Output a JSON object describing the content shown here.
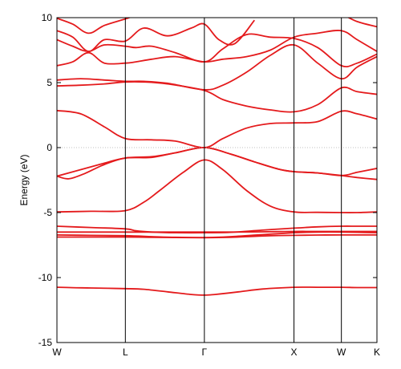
{
  "chart_data": {
    "type": "line",
    "title": "",
    "xlabel": "",
    "ylabel": "Energy (eV)",
    "ylim": [
      -15,
      10
    ],
    "yticks": [
      -15,
      -10,
      -5,
      0,
      5,
      10
    ],
    "xticks": [
      {
        "label": "W",
        "pos": 0
      },
      {
        "label": "L",
        "pos": 0.866
      },
      {
        "label": "Γ",
        "pos": 1.866
      },
      {
        "label": "X",
        "pos": 3.0
      },
      {
        "label": "W",
        "pos": 3.6
      },
      {
        "label": "K",
        "pos": 4.05
      }
    ],
    "xlim": [
      0,
      4.05
    ],
    "fermi_level": 0,
    "grid": false,
    "colors": {
      "bands": "#e41a1c",
      "axis": "#000000",
      "fermi": "#aaaaaa"
    },
    "series": [
      {
        "x": [
          0,
          0.2,
          0.43,
          0.65,
          0.866,
          1.1,
          1.4,
          1.7,
          1.866,
          2.0,
          2.3,
          2.6,
          3.0,
          3.3,
          3.6,
          3.8,
          4.05
        ],
        "values": [
          -10.75,
          -10.78,
          -10.8,
          -10.83,
          -10.85,
          -10.9,
          -11.1,
          -11.3,
          -11.35,
          -11.3,
          -11.1,
          -10.88,
          -10.75,
          -10.75,
          -10.75,
          -10.77,
          -10.77
        ]
      },
      {
        "x": [
          0,
          0.43,
          0.866,
          1.2,
          1.5,
          1.866,
          2.2,
          2.6,
          3.0,
          3.3,
          3.6,
          3.8,
          4.05
        ],
        "values": [
          -6.88,
          -6.88,
          -6.88,
          -6.9,
          -6.92,
          -6.93,
          -6.9,
          -6.8,
          -6.75,
          -6.73,
          -6.72,
          -6.72,
          -6.72
        ]
      },
      {
        "x": [
          0,
          0.43,
          0.866,
          1.2,
          1.5,
          1.866,
          2.2,
          2.6,
          3.0,
          3.3,
          3.6,
          3.8,
          4.05
        ],
        "values": [
          -6.72,
          -6.75,
          -6.78,
          -6.85,
          -6.9,
          -6.92,
          -6.85,
          -6.7,
          -6.55,
          -6.5,
          -6.5,
          -6.52,
          -6.55
        ]
      },
      {
        "x": [
          0,
          0.43,
          0.866,
          1.2,
          1.5,
          1.866,
          2.2,
          2.6,
          3.0,
          3.3,
          3.6,
          3.8,
          4.05
        ],
        "values": [
          -6.5,
          -6.5,
          -6.5,
          -6.5,
          -6.5,
          -6.5,
          -6.5,
          -6.48,
          -6.45,
          -6.45,
          -6.45,
          -6.45,
          -6.45
        ]
      },
      {
        "x": [
          0,
          0.43,
          0.866,
          1.0,
          1.2,
          1.5,
          1.866,
          2.2,
          2.6,
          3.0,
          3.3,
          3.6,
          3.8,
          4.05
        ],
        "values": [
          -6.05,
          -6.15,
          -6.25,
          -6.4,
          -6.5,
          -6.55,
          -6.55,
          -6.52,
          -6.35,
          -6.2,
          -6.1,
          -6.05,
          -6.05,
          -6.05
        ]
      },
      {
        "x": [
          0,
          0.43,
          0.866,
          1.1,
          1.3,
          1.6,
          1.866,
          2.1,
          2.4,
          2.7,
          3.0,
          3.3,
          3.6,
          3.8,
          4.05
        ],
        "values": [
          -4.95,
          -4.9,
          -4.85,
          -4.2,
          -3.3,
          -1.9,
          -0.95,
          -1.7,
          -3.3,
          -4.5,
          -4.95,
          -4.98,
          -5.0,
          -5.0,
          -4.95
        ]
      },
      {
        "x": [
          0,
          0.15,
          0.35,
          0.6,
          0.866,
          1.2,
          1.5,
          1.866,
          2.2,
          2.5,
          2.8,
          3.0,
          3.3,
          3.6,
          3.8,
          4.05
        ],
        "values": [
          -2.2,
          -2.4,
          -2.0,
          -1.3,
          -0.8,
          -0.7,
          -0.4,
          0,
          -0.5,
          -1.1,
          -1.65,
          -1.85,
          -1.95,
          -2.15,
          -2.3,
          -2.45
        ]
      },
      {
        "x": [
          0,
          0.3,
          0.6,
          0.866,
          1.2,
          1.5,
          1.866,
          2.2,
          2.5,
          2.8,
          3.0,
          3.3,
          3.6,
          3.8,
          4.05
        ],
        "values": [
          -2.2,
          -1.7,
          -1.2,
          -0.8,
          -0.75,
          -0.4,
          0,
          -0.5,
          -1.1,
          -1.65,
          -1.85,
          -1.95,
          -2.15,
          -1.9,
          -1.6
        ]
      },
      {
        "x": [
          0,
          0.3,
          0.6,
          0.866,
          1.2,
          1.5,
          1.866,
          2.1,
          2.4,
          2.7,
          3.0,
          3.3,
          3.6,
          3.8,
          4.05
        ],
        "values": [
          2.85,
          2.6,
          1.6,
          0.7,
          0.6,
          0.5,
          0,
          0.7,
          1.5,
          1.85,
          1.9,
          2.0,
          2.8,
          2.6,
          2.2
        ]
      },
      {
        "x": [
          0,
          0.3,
          0.6,
          0.866,
          1.1,
          1.4,
          1.866,
          2.1,
          2.4,
          2.7,
          3.0,
          3.3,
          3.6,
          3.8,
          4.05
        ],
        "values": [
          4.75,
          4.8,
          4.9,
          5.05,
          5.05,
          4.9,
          4.4,
          3.7,
          3.2,
          2.9,
          2.75,
          3.3,
          4.6,
          4.3,
          4.1
        ]
      },
      {
        "x": [
          0,
          0.3,
          0.6,
          0.866,
          1.1,
          1.4,
          1.866,
          2.1,
          2.4,
          2.7,
          3.0,
          3.3,
          3.6,
          3.8,
          4.05
        ],
        "values": [
          5.2,
          5.3,
          5.2,
          5.1,
          5.1,
          4.95,
          4.45,
          4.8,
          5.8,
          7.1,
          7.9,
          6.5,
          5.3,
          6.2,
          7.0
        ]
      },
      {
        "x": [
          0,
          0.2,
          0.4,
          0.6,
          0.866,
          1.0,
          1.2,
          1.5,
          1.866,
          2.1,
          2.4,
          2.7,
          3.0,
          3.3,
          3.6,
          3.8,
          4.05
        ],
        "values": [
          6.3,
          6.6,
          7.3,
          6.5,
          6.5,
          6.6,
          6.8,
          7.0,
          6.6,
          6.8,
          7.0,
          7.5,
          8.5,
          8.8,
          9.0,
          8.3,
          7.4
        ]
      },
      {
        "x": [
          0,
          0.2,
          0.4,
          0.6,
          0.866,
          1.0,
          1.2,
          1.5,
          1.866,
          2.1,
          2.4,
          2.7,
          3.0,
          3.3,
          3.6,
          3.8,
          4.05
        ],
        "values": [
          8.3,
          7.8,
          7.4,
          7.9,
          7.8,
          7.7,
          7.8,
          7.3,
          6.6,
          7.6,
          8.7,
          8.5,
          8.4,
          7.7,
          6.3,
          6.5,
          7.2
        ]
      },
      {
        "x": [
          0,
          0.2,
          0.4,
          0.6,
          0.866,
          1.1,
          1.4,
          1.7,
          1.866,
          2.05,
          2.25,
          2.5
        ],
        "values": [
          9.0,
          8.5,
          7.4,
          8.3,
          8.2,
          9.2,
          8.6,
          9.2,
          9.5,
          8.3,
          8.0,
          9.8
        ]
      },
      {
        "x": [
          0,
          0.2,
          0.4,
          0.6,
          0.866,
          1.2,
          1.5,
          1.866,
          2.05,
          2.25,
          2.5
        ],
        "values": [
          9.95,
          9.5,
          8.8,
          9.4,
          9.9,
          10.5,
          10.2,
          10.6,
          10.3,
          10.5,
          10.8
        ]
      },
      {
        "x": [
          3.6,
          3.8,
          4.05
        ],
        "values": [
          10.3,
          9.7,
          9.3
        ]
      }
    ]
  }
}
